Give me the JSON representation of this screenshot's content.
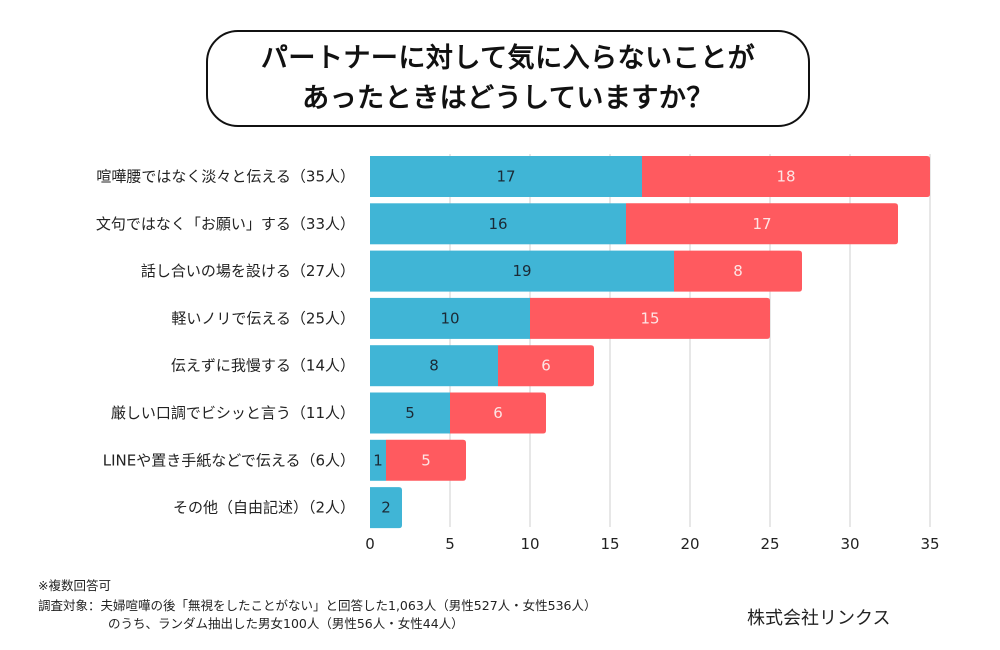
{
  "title": {
    "line1": "パートナーに対して気に入らないことが",
    "line2": "あったときはどうしていますか？"
  },
  "chart_data": {
    "type": "bar",
    "orientation": "horizontal",
    "stacked": true,
    "title": "パートナーに対して気に入らないことがあったときはどうしていますか？",
    "categories": [
      "喧嘩腰ではなく淡々と伝える（35人）",
      "文句ではなく「お願い」する（33人）",
      "話し合いの場を設ける（27人）",
      "軽いノリで伝える（25人）",
      "伝えずに我慢する（14人）",
      "厳しい口調でビシッと言う（11人）",
      "LINEや置き手紙などで伝える（6人）",
      "その他（自由記述）（2人）"
    ],
    "series": [
      {
        "name": "series-blue",
        "color": "#40b5d6",
        "label_color": "#1b2a36",
        "values": [
          17,
          16,
          19,
          10,
          8,
          5,
          1,
          2
        ]
      },
      {
        "name": "series-red",
        "color": "#ff5a5f",
        "label_color": "#fde4e4",
        "values": [
          18,
          17,
          8,
          15,
          6,
          6,
          5,
          0
        ]
      }
    ],
    "totals": [
      35,
      33,
      27,
      25,
      14,
      11,
      6,
      2
    ],
    "xlim": [
      0,
      35
    ],
    "xticks": [
      0,
      5,
      10,
      15,
      20,
      25,
      30,
      35
    ],
    "xlabel": "",
    "ylabel": "",
    "grid": true,
    "legend": "none"
  },
  "footer": {
    "note1": "※複数回答可",
    "note2": "調査対象：夫婦喧嘩の後「無視をしたことがない」と回答した1,063人（男性527人・女性536人）",
    "note3": "のうち、ランダム抽出した男女100人（男性56人・女性44人）",
    "company": "株式会社リンクス"
  }
}
